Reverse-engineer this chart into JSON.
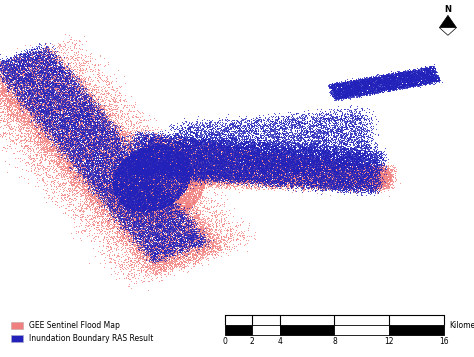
{
  "background_color": "#ffffff",
  "figure_width": 4.74,
  "figure_height": 3.57,
  "dpi": 100,
  "flood_color": "#f08080",
  "ras_color": "#2222bb",
  "legend_items": [
    {
      "label": "GEE Sentinel Flood Map",
      "color": "#f08080"
    },
    {
      "label": "Inundation Boundary RAS Result",
      "color": "#2222bb"
    }
  ],
  "scalebar_ticks": [
    0,
    2,
    4,
    8,
    12,
    16
  ],
  "scalebar_label": "Kilometers",
  "seed": 42,
  "n_flood_points": 60000,
  "n_ras_points": 60000,
  "point_size": 0.4,
  "point_alpha": 0.85
}
